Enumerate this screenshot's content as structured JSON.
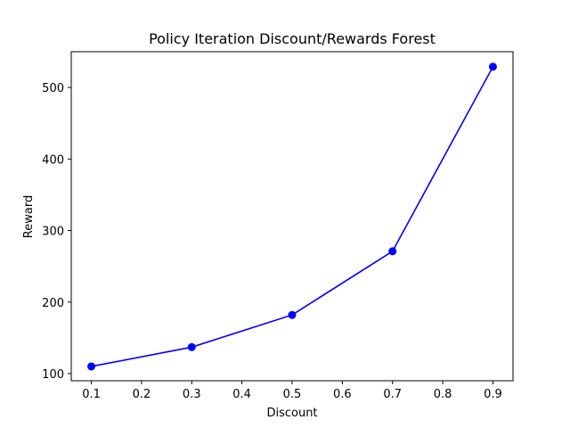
{
  "chart_data": {
    "type": "line",
    "title": "Policy Iteration Discount/Rewards Forest",
    "xlabel": "Discount",
    "ylabel": "Reward",
    "xlim": [
      0.06,
      0.94
    ],
    "ylim": [
      90,
      550
    ],
    "xticks": [
      "0.1",
      "0.2",
      "0.3",
      "0.4",
      "0.5",
      "0.6",
      "0.7",
      "0.8",
      "0.9"
    ],
    "yticks": [
      "100",
      "200",
      "300",
      "400",
      "500"
    ],
    "grid": false,
    "series": [
      {
        "color": "#0000ff",
        "marker": "circle",
        "x": [
          0.1,
          0.3,
          0.5,
          0.7,
          0.9
        ],
        "y": [
          110,
          137,
          182,
          271,
          529
        ]
      }
    ]
  }
}
